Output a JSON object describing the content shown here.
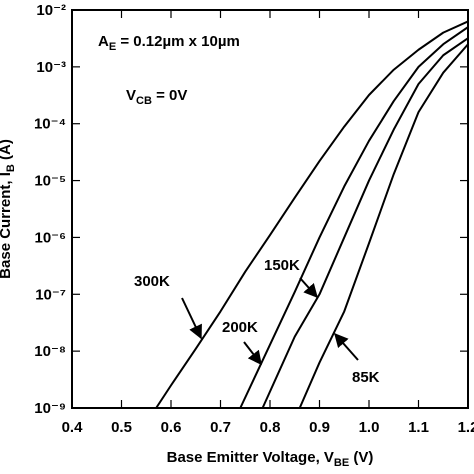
{
  "chart_data": {
    "type": "line",
    "yscale": "log",
    "x_label": {
      "text": "Base Emitter Voltage, V",
      "sub": "BE",
      "suffix": " (V)"
    },
    "y_label": {
      "text": "Base Current, I",
      "sub": "B",
      "suffix": " (A)"
    },
    "annotations": [
      {
        "text": "A",
        "sub": "E",
        "suffix": " = 0.12µm x 10µm"
      },
      {
        "text": "V",
        "sub": "CB",
        "suffix": " = 0V"
      }
    ],
    "xlim": [
      0.4,
      1.2
    ],
    "xticks": [
      0.4,
      0.5,
      0.6,
      0.7,
      0.8,
      0.9,
      {
        "value": 1,
        "label": "1.0"
      },
      1.1,
      1.2
    ],
    "ylim": [
      1e-09,
      0.01
    ],
    "yticks": [
      {
        "value": 0.01,
        "label": "10⁻²"
      },
      {
        "value": 0.001,
        "label": "10⁻³"
      },
      {
        "value": 0.0001,
        "label": "10⁻⁴"
      },
      {
        "value": 1e-05,
        "label": "10⁻⁵"
      },
      {
        "value": 1e-06,
        "label": "10⁻⁶"
      },
      {
        "value": 1e-07,
        "label": "10⁻⁷"
      },
      {
        "value": 1e-08,
        "label": "10⁻⁸"
      },
      {
        "value": 1e-09,
        "label": "10⁻⁹"
      }
    ],
    "series": [
      {
        "name": "300K",
        "color": "#000000",
        "x": [
          0.57,
          0.6,
          0.65,
          0.7,
          0.75,
          0.8,
          0.85,
          0.9,
          0.95,
          1.0,
          1.05,
          1.1,
          1.15,
          1.2
        ],
        "values": [
          1e-09,
          2.5e-09,
          1.1e-08,
          5e-08,
          2.5e-07,
          1.1e-06,
          5e-06,
          2.2e-05,
          8.9e-05,
          0.00032,
          0.00089,
          0.002,
          0.004,
          0.0063
        ]
      },
      {
        "name": "200K",
        "color": "#000000",
        "x": [
          0.74,
          0.8,
          0.85,
          0.9,
          0.95,
          1.0,
          1.05,
          1.1,
          1.15,
          1.2
        ],
        "values": [
          1e-09,
          1.3e-08,
          1.1e-07,
          1e-06,
          7.9e-06,
          5e-05,
          0.00025,
          0.001,
          0.0025,
          0.005
        ]
      },
      {
        "name": "150K",
        "color": "#000000",
        "x": [
          0.785,
          0.85,
          0.9,
          0.95,
          1.0,
          1.05,
          1.1,
          1.15,
          1.2
        ],
        "values": [
          1e-09,
          1.8e-08,
          1e-07,
          1e-06,
          1e-05,
          7.9e-05,
          0.0005,
          0.0016,
          0.0032
        ]
      },
      {
        "name": "85K",
        "color": "#000000",
        "x": [
          0.86,
          0.9,
          0.95,
          1.0,
          1.05,
          1.1,
          1.15,
          1.2
        ],
        "values": [
          1e-09,
          6.3e-09,
          5e-08,
          7.9e-07,
          1.3e-05,
          0.00016,
          0.00079,
          0.0025
        ]
      }
    ]
  }
}
